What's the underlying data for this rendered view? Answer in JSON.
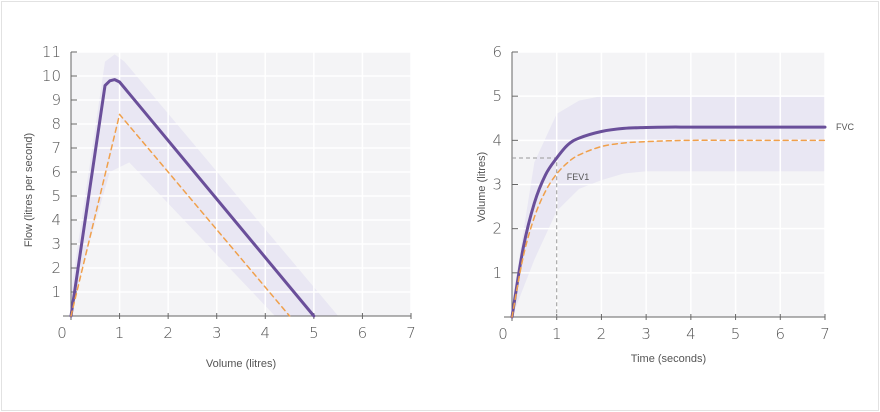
{
  "chart_data": [
    {
      "type": "line",
      "title": "",
      "xlabel": "Volume (litres)",
      "ylabel": "Flow (litres per second)",
      "xlim": [
        0,
        7
      ],
      "ylim": [
        0,
        11
      ],
      "xticks": [
        "0",
        "1",
        "2",
        "3",
        "4",
        "5",
        "6",
        "7"
      ],
      "yticks": [
        "1",
        "2",
        "3",
        "4",
        "5",
        "6",
        "7",
        "8",
        "9",
        "10",
        "11"
      ],
      "grid": true,
      "series": [
        {
          "style": "solid",
          "color": "#6a4f9a",
          "x": [
            0,
            0.7,
            0.8,
            0.9,
            1.0,
            5.0
          ],
          "y": [
            0,
            9.6,
            9.8,
            9.85,
            9.75,
            0
          ]
        },
        {
          "style": "dashed",
          "color": "#f0a04b",
          "x": [
            0,
            1.0,
            4.5
          ],
          "y": [
            0,
            8.4,
            0
          ]
        }
      ],
      "band": {
        "color": "#e6e4f2",
        "upper_x": [
          0,
          0.7,
          0.9,
          1.1,
          5.5
        ],
        "upper_y": [
          1,
          10.6,
          10.9,
          10.6,
          0
        ],
        "lower_x": [
          0,
          0.3,
          0.8,
          1.2,
          4.2
        ],
        "lower_y": [
          0,
          2.5,
          6.0,
          6.4,
          0
        ]
      }
    },
    {
      "type": "line",
      "title": "",
      "xlabel": "Time (seconds)",
      "ylabel": "Volume (litres)",
      "xlim": [
        0,
        7
      ],
      "ylim": [
        0,
        6
      ],
      "xticks": [
        "0",
        "1",
        "2",
        "3",
        "4",
        "5",
        "6",
        "7"
      ],
      "yticks": [
        "1",
        "2",
        "3",
        "4",
        "5",
        "6"
      ],
      "grid": true,
      "series": [
        {
          "name": "FVC",
          "style": "solid",
          "color": "#6a4f9a",
          "x": [
            0,
            0.25,
            0.5,
            0.75,
            1,
            1.25,
            1.5,
            2,
            2.5,
            3,
            3.5,
            4,
            5,
            6,
            7
          ],
          "y": [
            0,
            1.56,
            2.58,
            3.22,
            3.6,
            3.9,
            4.05,
            4.2,
            4.27,
            4.29,
            4.3,
            4.3,
            4.3,
            4.3,
            4.3
          ]
        },
        {
          "style": "dashed",
          "color": "#f0a04b",
          "x": [
            0,
            0.25,
            0.5,
            0.75,
            1,
            1.25,
            1.5,
            2,
            2.5,
            3,
            3.5,
            4,
            5,
            6,
            7
          ],
          "y": [
            0,
            1.36,
            2.26,
            2.85,
            3.24,
            3.5,
            3.67,
            3.86,
            3.94,
            3.97,
            3.99,
            4.0,
            4.0,
            4.0,
            4.0
          ]
        }
      ],
      "band": {
        "color": "#e6e4f2",
        "upper_x": [
          0,
          0.5,
          1,
          1.5,
          2,
          2.5,
          7
        ],
        "upper_y": [
          0.3,
          3.5,
          4.6,
          4.9,
          5.0,
          5.0,
          5.0
        ],
        "lower_x": [
          0,
          0.5,
          1,
          1.5,
          2,
          2.5,
          3,
          7
        ],
        "lower_y": [
          0,
          1.3,
          2.4,
          2.9,
          3.1,
          3.25,
          3.3,
          3.3
        ]
      },
      "annotations": {
        "fev1_label": "FEV1",
        "fvc_label": "FVC",
        "fev1_point": [
          1,
          3.6
        ]
      }
    }
  ]
}
